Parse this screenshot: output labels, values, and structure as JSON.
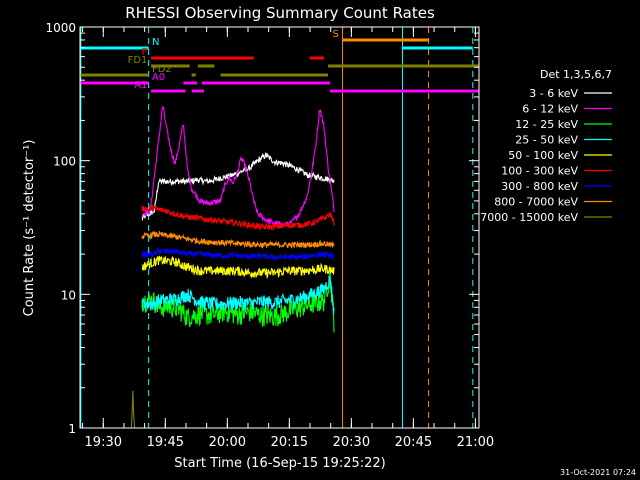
{
  "chart_data": {
    "type": "line",
    "title": "RHESSI Observing Summary Count Rates",
    "xlabel": "Start Time (16-Sep-15 19:25:22)",
    "ylabel": "Count Rate (s⁻¹ detector⁻¹)",
    "yscale": "log",
    "ylim": [
      1,
      1000
    ],
    "xlim_minutes": [
      -1,
      95.5
    ],
    "x_ticks": [
      {
        "label": "19:30",
        "minutes": 4.63
      },
      {
        "label": "19:45",
        "minutes": 19.63
      },
      {
        "label": "20:00",
        "minutes": 34.63
      },
      {
        "label": "20:15",
        "minutes": 49.63
      },
      {
        "label": "20:30",
        "minutes": 64.63
      },
      {
        "label": "20:45",
        "minutes": 79.63
      },
      {
        "label": "21:00",
        "minutes": 94.63
      }
    ],
    "y_ticks": [
      {
        "label": "1",
        "value": 1
      },
      {
        "label": "10",
        "value": 10
      },
      {
        "label": "100",
        "value": 100
      },
      {
        "label": "1000",
        "value": 1000
      }
    ],
    "legend_title": "Det 1,3,5,6,7",
    "legend_position": "right",
    "data_window_minutes": [
      14,
      60.5
    ],
    "series": [
      {
        "name": "3 - 6 keV",
        "color": "#ffffff",
        "points": [
          [
            14,
            37
          ],
          [
            17,
            42
          ],
          [
            18,
            70
          ],
          [
            25,
            70
          ],
          [
            26,
            70
          ],
          [
            27,
            72
          ],
          [
            30,
            70
          ],
          [
            33,
            74
          ],
          [
            36,
            78
          ],
          [
            40,
            88
          ],
          [
            42,
            100
          ],
          [
            44,
            110
          ],
          [
            46,
            98
          ],
          [
            48,
            96
          ],
          [
            50,
            91
          ],
          [
            52,
            85
          ],
          [
            54,
            78
          ],
          [
            56,
            76
          ],
          [
            58,
            74
          ],
          [
            59.5,
            72
          ],
          [
            60.5,
            70
          ]
        ]
      },
      {
        "name": "6 - 12 keV",
        "color": "#ff00ff",
        "points": [
          [
            14,
            40
          ],
          [
            16,
            42
          ],
          [
            18,
            140
          ],
          [
            19,
            260
          ],
          [
            20,
            170
          ],
          [
            21,
            120
          ],
          [
            22,
            95
          ],
          [
            23,
            130
          ],
          [
            24,
            190
          ],
          [
            25,
            85
          ],
          [
            26,
            62
          ],
          [
            28,
            50
          ],
          [
            30,
            48
          ],
          [
            33,
            50
          ],
          [
            34,
            65
          ],
          [
            35,
            75
          ],
          [
            36,
            68
          ],
          [
            37,
            80
          ],
          [
            38,
            105
          ],
          [
            39,
            90
          ],
          [
            40,
            70
          ],
          [
            41,
            50
          ],
          [
            42,
            40
          ],
          [
            44,
            36
          ],
          [
            46,
            34
          ],
          [
            48,
            33
          ],
          [
            50,
            34
          ],
          [
            52,
            40
          ],
          [
            54,
            55
          ],
          [
            55,
            80
          ],
          [
            56,
            130
          ],
          [
            57,
            250
          ],
          [
            58,
            180
          ],
          [
            59,
            90
          ],
          [
            60.5,
            42
          ]
        ]
      },
      {
        "name": "12 - 25 keV",
        "color": "#00ff00",
        "points": [
          [
            14,
            9
          ],
          [
            17,
            9
          ],
          [
            18,
            8
          ],
          [
            20,
            8.2
          ],
          [
            23,
            7.8
          ],
          [
            25,
            6.8
          ],
          [
            28,
            7.2
          ],
          [
            31,
            7
          ],
          [
            34,
            7.5
          ],
          [
            37,
            7.1
          ],
          [
            40,
            7.4
          ],
          [
            43,
            7
          ],
          [
            46,
            6.9
          ],
          [
            49,
            7.4
          ],
          [
            52,
            8
          ],
          [
            55,
            8.5
          ],
          [
            58,
            9
          ],
          [
            59.5,
            14
          ],
          [
            60.5,
            6
          ]
        ]
      },
      {
        "name": "25 - 50 keV",
        "color": "#00ffff",
        "points": [
          [
            14,
            8.5
          ],
          [
            17,
            8.5
          ],
          [
            18,
            9
          ],
          [
            22,
            9.2
          ],
          [
            25,
            10
          ],
          [
            28,
            8.8
          ],
          [
            31,
            8.5
          ],
          [
            34,
            8.5
          ],
          [
            37,
            8.7
          ],
          [
            40,
            8.6
          ],
          [
            43,
            8.8
          ],
          [
            46,
            8.7
          ],
          [
            49,
            9
          ],
          [
            52,
            9.3
          ],
          [
            55,
            10
          ],
          [
            58,
            11
          ],
          [
            59.5,
            13
          ],
          [
            60.5,
            7
          ]
        ]
      },
      {
        "name": "50 - 100 keV",
        "color": "#ffff00",
        "points": [
          [
            14,
            16
          ],
          [
            17,
            17.5
          ],
          [
            18,
            18
          ],
          [
            22,
            17.5
          ],
          [
            25,
            16
          ],
          [
            28,
            15
          ],
          [
            31,
            15
          ],
          [
            34,
            15
          ],
          [
            37,
            15
          ],
          [
            40,
            14.5
          ],
          [
            43,
            14.5
          ],
          [
            46,
            14.5
          ],
          [
            49,
            15
          ],
          [
            52,
            15
          ],
          [
            55,
            15.2
          ],
          [
            58,
            15.6
          ],
          [
            60.5,
            15
          ]
        ]
      },
      {
        "name": "100 - 300 keV",
        "color": "#ff0000",
        "points": [
          [
            14,
            44
          ],
          [
            17,
            44
          ],
          [
            18,
            43
          ],
          [
            20,
            42
          ],
          [
            22,
            40
          ],
          [
            25,
            38
          ],
          [
            28,
            37
          ],
          [
            31,
            36
          ],
          [
            34,
            35
          ],
          [
            37,
            34
          ],
          [
            40,
            33
          ],
          [
            43,
            32
          ],
          [
            46,
            32
          ],
          [
            49,
            33
          ],
          [
            52,
            33
          ],
          [
            55,
            34
          ],
          [
            58,
            37
          ],
          [
            59.5,
            40
          ],
          [
            60.5,
            34
          ]
        ]
      },
      {
        "name": "300 - 800 keV",
        "color": "#0000ff",
        "points": [
          [
            14,
            20
          ],
          [
            17,
            20
          ],
          [
            18,
            21
          ],
          [
            22,
            21
          ],
          [
            25,
            20
          ],
          [
            28,
            20
          ],
          [
            31,
            19.6
          ],
          [
            34,
            19.5
          ],
          [
            37,
            19.5
          ],
          [
            40,
            19.2
          ],
          [
            43,
            19.3
          ],
          [
            46,
            19
          ],
          [
            49,
            19
          ],
          [
            52,
            19
          ],
          [
            55,
            19.5
          ],
          [
            58,
            20
          ],
          [
            60.5,
            19
          ]
        ]
      },
      {
        "name": "800 - 7000 keV",
        "color": "#ff8c00",
        "points": [
          [
            14,
            27
          ],
          [
            17,
            28
          ],
          [
            18,
            28
          ],
          [
            22,
            27
          ],
          [
            25,
            26
          ],
          [
            28,
            25
          ],
          [
            31,
            24.6
          ],
          [
            34,
            24.3
          ],
          [
            37,
            24
          ],
          [
            40,
            23.8
          ],
          [
            43,
            23.5
          ],
          [
            46,
            23.5
          ],
          [
            49,
            23.4
          ],
          [
            52,
            23.5
          ],
          [
            55,
            23.6
          ],
          [
            58,
            24
          ],
          [
            60.5,
            23
          ]
        ]
      },
      {
        "name": "7000 - 15000 keV",
        "color": "#808000",
        "points": [
          [
            11.4,
            1
          ],
          [
            11.6,
            1.3
          ],
          [
            11.8,
            1.9
          ],
          [
            12,
            1.2
          ],
          [
            12.2,
            1
          ]
        ]
      }
    ],
    "vlines": [
      {
        "minutes": -0.8,
        "color": "#00ffff",
        "style": "solid"
      },
      {
        "minutes": 15.6,
        "color": "#00ffff",
        "style": "dashed"
      },
      {
        "minutes": 62.5,
        "color": "#ff8c00",
        "style": "solid"
      },
      {
        "minutes": 77.0,
        "color": "#00ffff",
        "style": "solid"
      },
      {
        "minutes": 83.3,
        "color": "#ff8c00",
        "style": "dashed"
      },
      {
        "minutes": 94.0,
        "color": "#00ffff",
        "style": "dashed"
      }
    ],
    "flags": [
      {
        "label": "N",
        "color": "#00ffff",
        "label_at": 16.4,
        "label_side": "right",
        "level": 0,
        "segments": [
          [
            -1,
            15.6
          ],
          [
            77.0,
            94.0
          ]
        ]
      },
      {
        "label": "S",
        "color": "#ff8c00",
        "label_at": 61.6,
        "label_side": "left",
        "level": 1,
        "segments": [
          [
            62.5,
            83.3
          ]
        ]
      },
      {
        "label": "F",
        "color": "#ff0000",
        "label_at": 15.3,
        "label_side": "left",
        "level": 2,
        "segments": [
          [
            16.2,
            41.0
          ],
          [
            54.5,
            58.0
          ]
        ]
      },
      {
        "label": "FD1",
        "color": "#808000",
        "label_at": 15.3,
        "label_side": "left",
        "level": 3,
        "segments": [
          [
            16.2,
            25.5
          ],
          [
            27.5,
            31.5
          ],
          [
            59.0,
            95.5
          ]
        ]
      },
      {
        "label": "FD2",
        "color": "#808000",
        "label_at": 16.4,
        "label_side": "right",
        "level": 4,
        "segments": [
          [
            -1,
            15.6
          ],
          [
            26.0,
            27.0
          ],
          [
            33.0,
            59.0
          ]
        ]
      },
      {
        "label": "A0",
        "color": "#ff00ff",
        "label_at": 16.4,
        "label_side": "right",
        "level": 5,
        "segments": [
          [
            -1,
            15.6
          ],
          [
            24.0,
            27.3
          ],
          [
            28.5,
            59.5
          ]
        ]
      },
      {
        "label": "A1",
        "color": "#ff00ff",
        "label_at": 15.3,
        "label_side": "left",
        "level": 6,
        "segments": [
          [
            16.2,
            24.5
          ],
          [
            26.0,
            29.0
          ],
          [
            59.5,
            95.5
          ]
        ]
      }
    ]
  },
  "footer": {
    "date_stamp": "31-Oct-2021 07:24"
  }
}
